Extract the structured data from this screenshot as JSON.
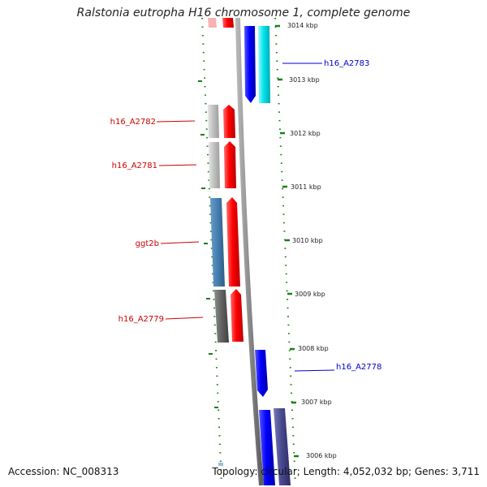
{
  "title": "Ralstonia eutropha H16 chromosome 1, complete genome",
  "footer": {
    "accession": "Accession: NC_008313",
    "summary": "Topology: circular; Length: 4,052,032 bp; Genes: 3,711"
  },
  "colors": {
    "forward_gene": "#ff0000",
    "reverse_gene": "#0000ff",
    "cyan_gene": "#00e5ee",
    "ticks": "#1a7f1a",
    "backbone": "#8a8a8a"
  },
  "scale_labels": [
    "3014 kbp",
    "3013 kbp",
    "3012 kbp",
    "3011 kbp",
    "3010 kbp",
    "3009 kbp",
    "3008 kbp",
    "3007 kbp",
    "3006 kbp"
  ],
  "gene_labels": {
    "h16_A2783": "h16_A2783",
    "h16_A2782": "h16_A2782",
    "h16_A2781": "h16_A2781",
    "ggt2b": "ggt2b",
    "h16_A2779": "h16_A2779",
    "h16_A2778": "h16_A2778"
  }
}
